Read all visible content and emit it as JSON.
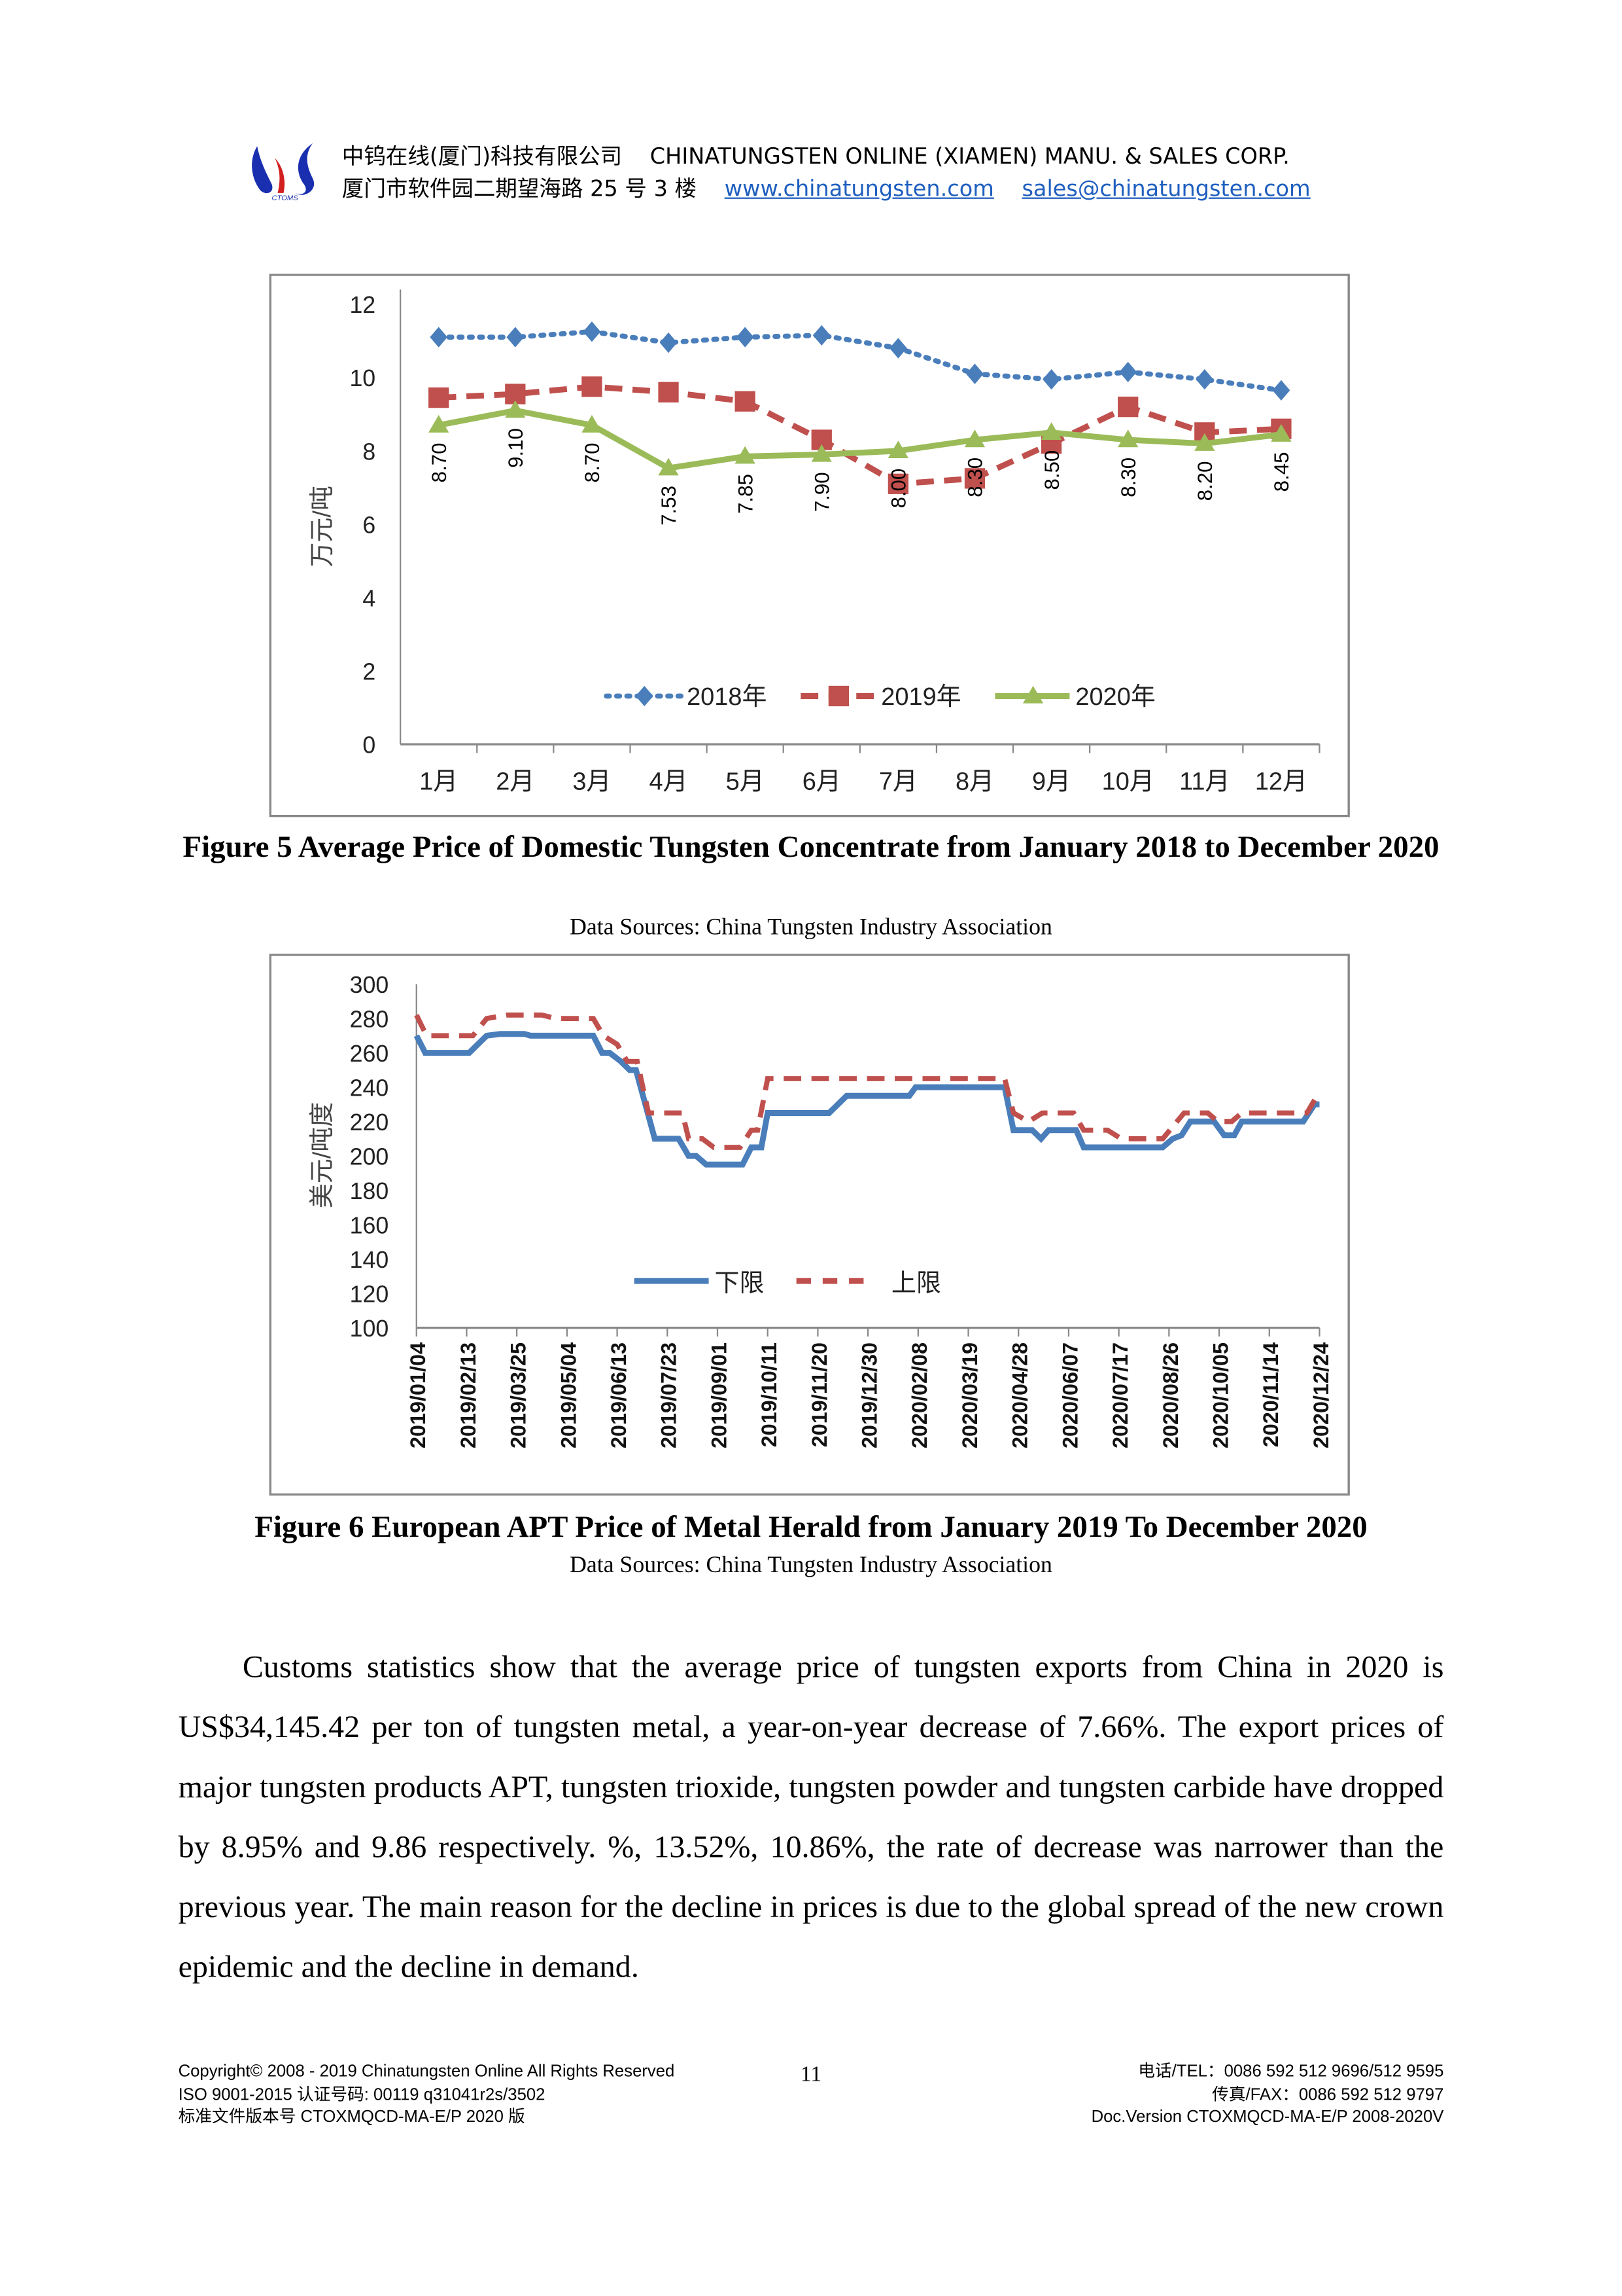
{
  "header": {
    "company_cn": "中钨在线(厦门)科技有限公司",
    "company_en": "CHINATUNGSTEN ONLINE (XIAMEN) MANU. & SALES CORP.",
    "address": "厦门市软件园二期望海路 25 号 3 楼",
    "website": "www.chinatungsten.com",
    "email": "sales@chinatungsten.com",
    "logo_text": "CTOMS"
  },
  "figure5": {
    "caption": "Figure 5 Average Price of Domestic Tungsten Concentrate from January 2018 to December 2020",
    "source": "Data Sources: China Tungsten Industry Association"
  },
  "figure6": {
    "caption": "Figure 6 European APT Price of Metal Herald from January 2019 To December 2020",
    "source": "Data Sources: China Tungsten Industry Association"
  },
  "paragraph": "Customs statistics show that the average price of tungsten exports from China in 2020 is US$34,145.42 per ton of tungsten metal, a year-on-year decrease of 7.66%. The export prices of major tungsten products APT, tungsten trioxide, tungsten powder and tungsten carbide have dropped by 8.95% and 9.86 respectively. %, 13.52%, 10.86%, the rate of decrease was narrower than the previous year. The main reason for the decline in prices is due to the global spread of the new crown epidemic and the decline in demand.",
  "footer": {
    "copyright": "Copyright© 2008 - 2019 Chinatungsten Online All Rights Reserved",
    "iso": "ISO 9001-2015 认证号码: 00119 q31041r2s/3502",
    "std_version": "标准文件版本号 CTOXMQCD-MA-E/P 2020 版",
    "page_number": "11",
    "tel": "电话/TEL：0086 592 512 9696/512 9595",
    "fax": "传真/FAX：0086 592 512 9797",
    "doc_version": "Doc.Version CTOXMQCD-MA-E/P 2008-2020V"
  },
  "chart_data": [
    {
      "type": "line",
      "ylabel": "万元/吨",
      "ylim": [
        0,
        12
      ],
      "yticks": [
        "0",
        "2",
        "4",
        "6",
        "8",
        "10",
        "12"
      ],
      "categories": [
        "1月",
        "2月",
        "3月",
        "4月",
        "5月",
        "6月",
        "7月",
        "8月",
        "9月",
        "10月",
        "11月",
        "12月"
      ],
      "legend_position": "bottom-inside",
      "series": [
        {
          "name": "2018年",
          "color": "#4a7ebb",
          "style": "dotted",
          "marker": "diamond",
          "values": [
            11.1,
            11.1,
            11.25,
            10.95,
            11.1,
            11.15,
            10.8,
            10.1,
            9.95,
            10.15,
            9.95,
            9.65
          ]
        },
        {
          "name": "2019年",
          "color": "#c0504d",
          "style": "dashed",
          "marker": "square",
          "values": [
            9.45,
            9.55,
            9.75,
            9.6,
            9.35,
            8.3,
            7.1,
            7.25,
            8.2,
            9.2,
            8.5,
            8.6
          ]
        },
        {
          "name": "2020年",
          "color": "#9bbb59",
          "style": "solid",
          "marker": "triangle",
          "values": [
            8.7,
            9.1,
            8.7,
            7.53,
            7.85,
            7.9,
            8.0,
            8.3,
            8.5,
            8.3,
            8.2,
            8.45
          ],
          "data_labels": [
            "8.70",
            "9.10",
            "8.70",
            "7.53",
            "7.85",
            "7.90",
            "8.00",
            "8.30",
            "8.50",
            "8.30",
            "8.20",
            "8.45"
          ]
        }
      ]
    },
    {
      "type": "line",
      "ylabel": "美元/吨度",
      "ylim": [
        100,
        300
      ],
      "yticks": [
        "100",
        "120",
        "140",
        "160",
        "180",
        "200",
        "220",
        "240",
        "260",
        "280",
        "300"
      ],
      "xlim": [
        "2019/01/04",
        "2020/12/24"
      ],
      "xticks": [
        "2019/01/04",
        "2019/02/13",
        "2019/03/25",
        "2019/05/04",
        "2019/06/13",
        "2019/07/23",
        "2019/09/01",
        "2019/10/11",
        "2019/11/20",
        "2019/12/30",
        "2020/02/08",
        "2020/03/19",
        "2020/04/28",
        "2020/06/07",
        "2020/07/17",
        "2020/08/26",
        "2020/10/05",
        "2020/11/14",
        "2020/12/24"
      ],
      "legend_position": "bottom-inside",
      "series": [
        {
          "name": "下限",
          "color": "#4a7ebb",
          "style": "solid",
          "points": [
            [
              "2019/01/04",
              270
            ],
            [
              "2019/01/11",
              260
            ],
            [
              "2019/02/15",
              260
            ],
            [
              "2019/03/01",
              270
            ],
            [
              "2019/03/12",
              271
            ],
            [
              "2019/03/31",
              271
            ],
            [
              "2019/04/05",
              270
            ],
            [
              "2019/05/25",
              270
            ],
            [
              "2019/06/01",
              260
            ],
            [
              "2019/06/07",
              260
            ],
            [
              "2019/06/16",
              255
            ],
            [
              "2019/06/23",
              250
            ],
            [
              "2019/06/28",
              250
            ],
            [
              "2019/07/13",
              210
            ],
            [
              "2019/08/01",
              210
            ],
            [
              "2019/08/09",
              200
            ],
            [
              "2019/08/15",
              200
            ],
            [
              "2019/08/23",
              195
            ],
            [
              "2019/09/21",
              195
            ],
            [
              "2019/09/28",
              205
            ],
            [
              "2019/10/06",
              205
            ],
            [
              "2019/10/11",
              225
            ],
            [
              "2019/11/29",
              225
            ],
            [
              "2019/12/13",
              235
            ],
            [
              "2020/02/01",
              235
            ],
            [
              "2020/02/06",
              240
            ],
            [
              "2020/04/17",
              240
            ],
            [
              "2020/04/24",
              215
            ],
            [
              "2020/05/09",
              215
            ],
            [
              "2020/05/16",
              210
            ],
            [
              "2020/05/22",
              215
            ],
            [
              "2020/06/13",
              215
            ],
            [
              "2020/06/19",
              205
            ],
            [
              "2020/08/21",
              205
            ],
            [
              "2020/08/29",
              210
            ],
            [
              "2020/09/05",
              212
            ],
            [
              "2020/09/12",
              220
            ],
            [
              "2020/10/01",
              220
            ],
            [
              "2020/10/09",
              212
            ],
            [
              "2020/10/17",
              212
            ],
            [
              "2020/10/23",
              220
            ],
            [
              "2020/12/11",
              220
            ],
            [
              "2020/12/20",
              230
            ],
            [
              "2020/12/24",
              230
            ]
          ]
        },
        {
          "name": "上限",
          "color": "#c0504d",
          "style": "dashed",
          "points": [
            [
              "2019/01/04",
              282
            ],
            [
              "2019/01/12",
              270
            ],
            [
              "2019/02/18",
              270
            ],
            [
              "2019/03/01",
              280
            ],
            [
              "2019/03/17",
              282
            ],
            [
              "2019/04/14",
              282
            ],
            [
              "2019/04/25",
              280
            ],
            [
              "2019/05/25",
              280
            ],
            [
              "2019/06/02",
              270
            ],
            [
              "2019/06/13",
              265
            ],
            [
              "2019/06/21",
              255
            ],
            [
              "2019/06/29",
              255
            ],
            [
              "2019/07/08",
              225
            ],
            [
              "2019/08/04",
              225
            ],
            [
              "2019/08/09",
              210
            ],
            [
              "2019/08/20",
              210
            ],
            [
              "2019/08/29",
              205
            ],
            [
              "2019/09/19",
              205
            ],
            [
              "2019/09/28",
              215
            ],
            [
              "2019/10/03",
              215
            ],
            [
              "2019/10/11",
              245
            ],
            [
              "2020/04/17",
              245
            ],
            [
              "2020/04/24",
              225
            ],
            [
              "2020/05/06",
              220
            ],
            [
              "2020/05/17",
              225
            ],
            [
              "2020/06/11",
              225
            ],
            [
              "2020/06/19",
              215
            ],
            [
              "2020/07/08",
              215
            ],
            [
              "2020/07/19",
              210
            ],
            [
              "2020/08/21",
              210
            ],
            [
              "2020/09/07",
              225
            ],
            [
              "2020/09/26",
              225
            ],
            [
              "2020/10/04",
              220
            ],
            [
              "2020/10/15",
              220
            ],
            [
              "2020/10/23",
              225
            ],
            [
              "2020/12/14",
              225
            ],
            [
              "2020/12/22",
              235
            ]
          ]
        }
      ]
    }
  ]
}
